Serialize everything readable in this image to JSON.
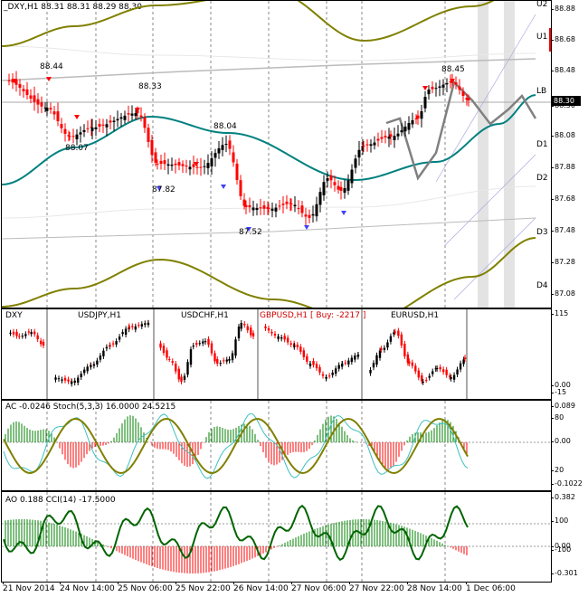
{
  "main_chart": {
    "title": "_DXY,H1  88.31 88.31 88.29 88.30",
    "price_tag": "88.30",
    "level_labels": [
      "U2",
      "U1",
      "LB",
      "D1",
      "D2",
      "D3",
      "D4"
    ],
    "peak_labels": [
      "88.44",
      "88.07",
      "88.33",
      "88.04",
      "87.82",
      "87.52",
      "88.45"
    ],
    "scale": [
      "88.88",
      "88.68",
      "88.48",
      "88.30",
      "88.08",
      "87.88",
      "87.68",
      "87.48",
      "87.28",
      "87.08"
    ]
  },
  "symbols_panel": {
    "labels": [
      "DXY",
      "USDJPY,H1",
      "USDCHF,H1",
      "GBPUSD,H1 [ Buy: -2217 ]",
      "EURUSD,H1"
    ],
    "scale": [
      "115",
      "0.00",
      "-15"
    ]
  },
  "stoch_panel": {
    "title": "AC -0.0246  Stoch(5,3,3) 16.0000 24.5215",
    "scale": [
      "0.089",
      "80",
      "0.00",
      "20",
      "-0.1022"
    ]
  },
  "cci_panel": {
    "title": "AO 0.188  CCI(14) -17.5000",
    "scale": [
      "0.382",
      "100",
      "0.00",
      "-100",
      "-0.301"
    ]
  },
  "time_axis": [
    "21 Nov 2014",
    "24 Nov 14:00",
    "25 Nov 06:00",
    "25 Nov 22:00",
    "26 Nov 14:00",
    "27 Nov 06:00",
    "27 Nov 22:00",
    "28 Nov 14:00",
    "1 Dec 06:00"
  ],
  "colors": {
    "up": "#000000",
    "down": "#ff0000",
    "ma": "#008080",
    "envelope": "#808000",
    "forecast": "#808080"
  }
}
